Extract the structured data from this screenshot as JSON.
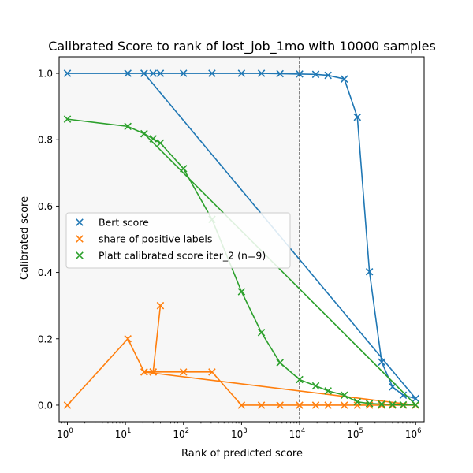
{
  "chart_data": {
    "type": "line",
    "title": "Calibrated Score to rank of lost_job_1mo with 10000 samples",
    "xlabel": "Rank of predicted score",
    "ylabel": "Calibrated score",
    "xscale": "log",
    "xlim": [
      0.72,
      1400000
    ],
    "ylim": [
      -0.05,
      1.05
    ],
    "x_ticks": [
      {
        "value": 1,
        "label": "10",
        "exp": "0"
      },
      {
        "value": 10,
        "label": "10",
        "exp": "1"
      },
      {
        "value": 100,
        "label": "10",
        "exp": "2"
      },
      {
        "value": 1000,
        "label": "10",
        "exp": "3"
      },
      {
        "value": 10000,
        "label": "10",
        "exp": "4"
      },
      {
        "value": 100000,
        "label": "10",
        "exp": "5"
      },
      {
        "value": 1000000,
        "label": "10",
        "exp": "6"
      }
    ],
    "y_ticks": [
      {
        "value": 0.0,
        "label": "0.0"
      },
      {
        "value": 0.2,
        "label": "0.2"
      },
      {
        "value": 0.4,
        "label": "0.4"
      },
      {
        "value": 0.6,
        "label": "0.6"
      },
      {
        "value": 0.8,
        "label": "0.8"
      },
      {
        "value": 1.0,
        "label": "1.0"
      }
    ],
    "shaded_region": {
      "x_start": 0.72,
      "x_end": 10000,
      "color": "#f7f7f7"
    },
    "vertical_line": {
      "x": 10000,
      "style": "dashed",
      "color": "#000000"
    },
    "legend_position": "center-left",
    "grid": false,
    "series": [
      {
        "name": "Bert score",
        "color": "#1f77b4",
        "marker": "x",
        "points": [
          [
            1,
            1.0
          ],
          [
            11,
            1.0
          ],
          [
            21,
            1.0
          ],
          [
            30,
            1.0
          ],
          [
            40,
            1.0
          ],
          [
            100,
            1.0
          ],
          [
            310,
            1.0
          ],
          [
            1000,
            1.0
          ],
          [
            2200,
            1.0
          ],
          [
            4600,
            0.999
          ],
          [
            10000,
            0.998
          ],
          [
            19000,
            0.997
          ],
          [
            31000,
            0.994
          ],
          [
            59000,
            0.983
          ],
          [
            99000,
            0.868
          ],
          [
            160000,
            0.402
          ],
          [
            260000,
            0.13
          ],
          [
            400000,
            0.055
          ],
          [
            610000,
            0.03
          ],
          [
            1000000,
            0.02
          ],
          [
            21,
            1.0
          ]
        ]
      },
      {
        "name": "share of positive labels",
        "color": "#ff7f0e",
        "marker": "x",
        "points": [
          [
            1,
            0.0
          ],
          [
            11,
            0.2
          ],
          [
            21,
            0.1
          ],
          [
            30,
            0.1
          ],
          [
            40,
            0.3
          ],
          [
            30,
            0.1
          ],
          [
            100,
            0.1
          ],
          [
            310,
            0.1
          ],
          [
            1000,
            0.0
          ],
          [
            2200,
            0.0
          ],
          [
            4600,
            0.0
          ],
          [
            10000,
            0.0
          ],
          [
            19000,
            0.0
          ],
          [
            31000,
            0.0
          ],
          [
            59000,
            0.0
          ],
          [
            99000,
            0.0
          ],
          [
            160000,
            0.0
          ],
          [
            260000,
            0.0
          ],
          [
            400000,
            0.0
          ],
          [
            610000,
            0.0
          ],
          [
            1000000,
            0.0
          ],
          [
            21,
            0.1
          ]
        ]
      },
      {
        "name": "Platt calibrated score iter_2 (n=9)",
        "color": "#2ca02c",
        "marker": "x",
        "points": [
          [
            1,
            0.862
          ],
          [
            11,
            0.84
          ],
          [
            21,
            0.818
          ],
          [
            30,
            0.803
          ],
          [
            40,
            0.79
          ],
          [
            100,
            0.713
          ],
          [
            310,
            0.56
          ],
          [
            1000,
            0.342
          ],
          [
            2200,
            0.219
          ],
          [
            4600,
            0.128
          ],
          [
            10000,
            0.077
          ],
          [
            19000,
            0.058
          ],
          [
            31000,
            0.043
          ],
          [
            59000,
            0.03
          ],
          [
            99000,
            0.01
          ],
          [
            160000,
            0.005
          ],
          [
            260000,
            0.003
          ],
          [
            400000,
            0.002
          ],
          [
            610000,
            0.001
          ],
          [
            1000000,
            0.001
          ],
          [
            21,
            0.818
          ]
        ]
      }
    ]
  }
}
